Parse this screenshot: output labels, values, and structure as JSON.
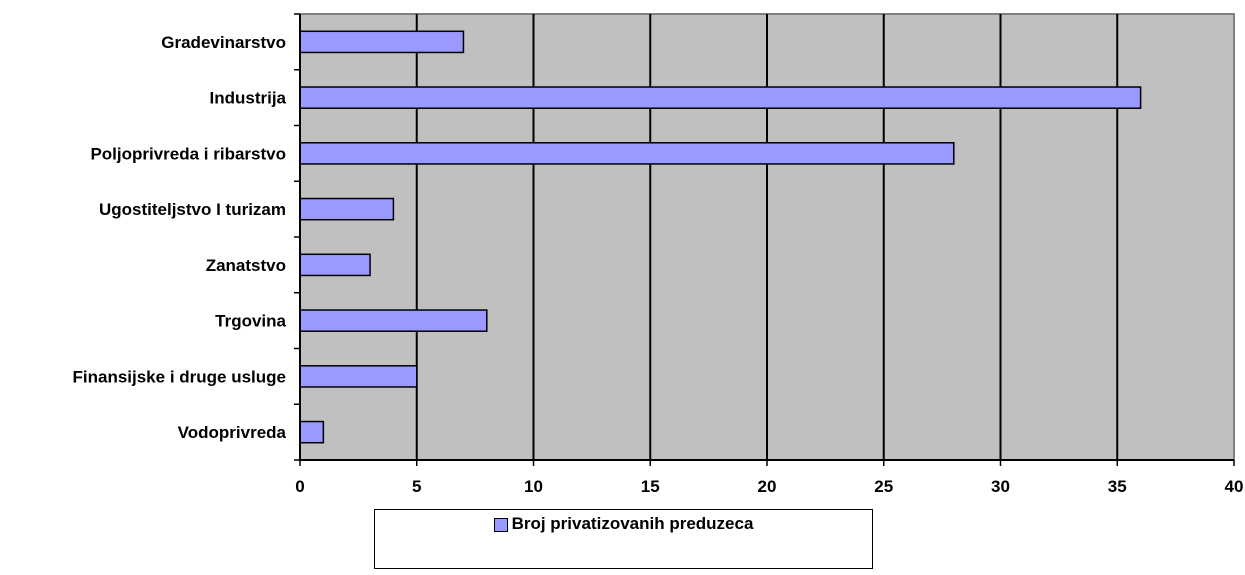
{
  "colors": {
    "bar": "#9999ff",
    "plot_bg": "#c0c0c0",
    "grid": "#000000",
    "plot_border": "#808080"
  },
  "chart_data": {
    "type": "bar",
    "orientation": "horizontal",
    "categories": [
      "Gradevinarstvo",
      "Industrija",
      "Poljoprivreda i ribarstvo",
      "Ugostiteljstvo I turizam ",
      "Zanatstvo",
      "Trgovina",
      "Finansijske i druge usluge ",
      "Vodoprivreda"
    ],
    "series": [
      {
        "name": "Broj privatizovanih preduzeca",
        "values": [
          7,
          36,
          28,
          4,
          3,
          8,
          5,
          1
        ]
      }
    ],
    "xticks": [
      "0",
      "5",
      "10",
      "15",
      "20",
      "25",
      "30",
      "35",
      "40"
    ],
    "xlim": [
      0,
      40
    ],
    "grid": true,
    "legend_position": "bottom"
  }
}
